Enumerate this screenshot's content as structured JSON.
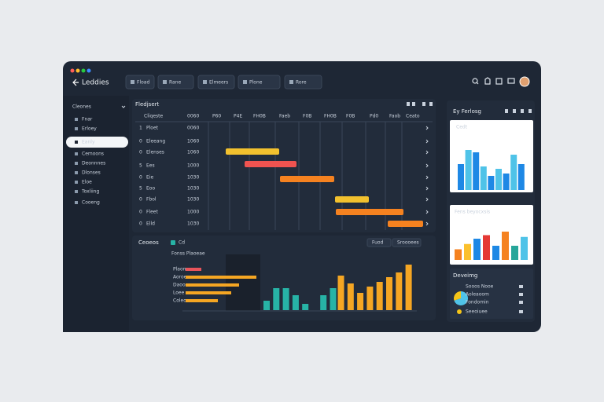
{
  "window": {
    "title": "Leddies",
    "filters": [
      "Fload",
      "Rane",
      "Elmeers",
      "Plone",
      "Rore"
    ]
  },
  "sidebar": {
    "header": "Cleones",
    "items": [
      "Fnar",
      "Erloey",
      "Eanly",
      "Cemoons",
      "Deonnnes",
      "Dlonses",
      "Eloe",
      "Toxliing",
      "Cooeng"
    ],
    "selected": 2
  },
  "gantt": {
    "title": "Fledjsert",
    "header": [
      "Cliqeste",
      "0060"
    ],
    "columns": [
      "P60",
      "P4E",
      "FH0B",
      "Faeb",
      "F0B",
      "FH0B",
      "F0B",
      "Pd0",
      "Faob",
      "Ceato"
    ],
    "rows": [
      {
        "num": "1",
        "name": "Ploet",
        "code": "0060"
      },
      {
        "num": "0",
        "name": "Eleeang",
        "code": "1060"
      },
      {
        "num": "0",
        "name": "Elenses",
        "code": "1060"
      },
      {
        "num": "5",
        "name": "Ees",
        "code": "1000"
      },
      {
        "num": "0",
        "name": "Eie",
        "code": "1030"
      },
      {
        "num": "5",
        "name": "Eoo",
        "code": "1030"
      },
      {
        "num": "0",
        "name": "Fbol",
        "code": "1030"
      },
      {
        "num": "0",
        "name": "Fleet",
        "code": "1000"
      },
      {
        "num": "0",
        "name": "Elld",
        "code": "1030"
      }
    ]
  },
  "activity": {
    "title": "Ceoeos",
    "legend": "Cd",
    "buttons": [
      "Fuod",
      "Sroooees"
    ],
    "subtitle": "Fonss Plaoeae",
    "hbars": {
      "labels": [
        "Plaom",
        "Aoroe",
        "Daooe",
        "Loee",
        "Coleo"
      ],
      "values": [
        20,
        90,
        68,
        58,
        41
      ],
      "colors": [
        "#e9545b",
        "#f5a623",
        "#f5a623",
        "#f5a623",
        "#f5a623"
      ]
    },
    "vbars": [
      {
        "color": "#27b3a6",
        "values": [
          12,
          28,
          28,
          19,
          8,
          19,
          28
        ]
      },
      {
        "color": "#f5a623",
        "values": [
          44,
          34,
          22,
          30,
          36,
          42,
          48,
          58
        ]
      }
    ]
  },
  "right": {
    "title": "Ey Ferlosg",
    "chart1": {
      "title": "Cedt",
      "values": [
        55,
        85,
        80,
        50,
        30,
        45,
        35,
        75,
        55
      ],
      "colors": [
        "#1e88e5",
        "#4fc3e8"
      ]
    },
    "chart2": {
      "title": "Fens beyocxsis",
      "values": [
        30,
        45,
        60,
        70,
        40,
        80,
        40,
        65
      ],
      "colors": [
        "#f58220",
        "#fbc02d",
        "#1e88e5",
        "#e53935",
        "#1e88e5",
        "#f58220",
        "#26a69a",
        "#4fc3e8"
      ]
    },
    "list": {
      "title": "Deveimg",
      "items": [
        "Sooos Nooe",
        "Aoleaoom",
        "Fondomin",
        "Seeoiuee"
      ],
      "pie": [
        70,
        30
      ]
    }
  }
}
